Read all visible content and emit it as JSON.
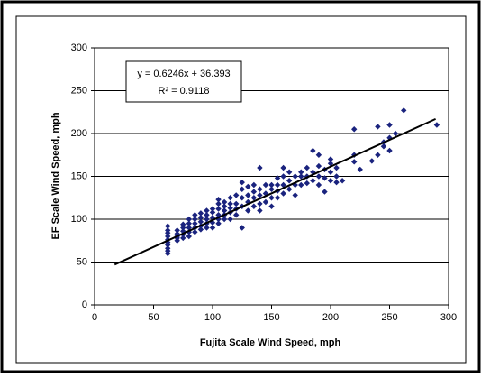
{
  "chart_data": {
    "type": "scatter",
    "x_label": "Fujita Scale Wind Speed, mph",
    "y_label": "EF Scale Wind Speed, mph",
    "annotation": [
      "y = 0.6246x + 36.393",
      "R² = 0.9118"
    ],
    "xlim": [
      0,
      300
    ],
    "xticks": [
      0,
      50,
      100,
      150,
      200,
      250,
      300
    ],
    "ylim": [
      0,
      300
    ],
    "yticks": [
      0,
      50,
      100,
      150,
      200,
      250,
      300
    ],
    "grid": true,
    "series": [
      {
        "color": "#1a237e",
        "x": [
          62,
          62,
          62,
          62,
          62,
          62,
          62,
          62,
          62,
          62,
          70,
          70,
          70,
          70,
          70,
          75,
          75,
          75,
          75,
          75,
          80,
          80,
          80,
          80,
          80,
          85,
          85,
          85,
          85,
          85,
          90,
          90,
          90,
          90,
          90,
          95,
          95,
          95,
          95,
          95,
          100,
          100,
          100,
          100,
          100,
          105,
          105,
          105,
          105,
          105,
          105,
          110,
          110,
          110,
          110,
          110,
          115,
          115,
          115,
          115,
          115,
          120,
          120,
          120,
          120,
          125,
          125,
          125,
          125,
          125,
          130,
          130,
          130,
          130,
          135,
          135,
          135,
          135,
          140,
          140,
          140,
          140,
          140,
          145,
          145,
          145,
          150,
          150,
          150,
          150,
          155,
          155,
          155,
          155,
          160,
          160,
          160,
          160,
          165,
          165,
          165,
          170,
          170,
          170,
          175,
          175,
          175,
          180,
          180,
          180,
          185,
          185,
          185,
          190,
          190,
          190,
          190,
          195,
          195,
          195,
          200,
          200,
          200,
          200,
          205,
          205,
          205,
          210,
          220,
          220,
          220,
          225,
          235,
          240,
          240,
          245,
          245,
          250,
          250,
          250,
          255,
          262,
          290
        ],
        "values": [
          60,
          63,
          66,
          70,
          73,
          76,
          80,
          84,
          87,
          92,
          75,
          78,
          80,
          83,
          87,
          78,
          82,
          86,
          90,
          94,
          80,
          85,
          90,
          95,
          100,
          85,
          90,
          95,
          100,
          105,
          88,
          92,
          97,
          102,
          107,
          90,
          95,
          100,
          105,
          110,
          90,
          96,
          102,
          108,
          112,
          95,
          100,
          105,
          112,
          118,
          123,
          100,
          105,
          110,
          115,
          120,
          100,
          108,
          113,
          118,
          125,
          105,
          112,
          118,
          128,
          90,
          115,
          125,
          135,
          143,
          110,
          120,
          128,
          138,
          115,
          125,
          132,
          140,
          110,
          118,
          128,
          135,
          160,
          120,
          130,
          140,
          115,
          125,
          135,
          140,
          125,
          133,
          140,
          148,
          130,
          140,
          150,
          160,
          135,
          145,
          155,
          128,
          140,
          150,
          140,
          150,
          155,
          142,
          150,
          160,
          145,
          155,
          180,
          140,
          150,
          162,
          175,
          132,
          148,
          158,
          145,
          155,
          165,
          170,
          143,
          150,
          160,
          145,
          167,
          175,
          205,
          158,
          168,
          175,
          208,
          185,
          190,
          180,
          195,
          210,
          200,
          227,
          210
        ]
      }
    ],
    "trendline": {
      "color": "#000000",
      "x": [
        17,
        289
      ],
      "values": [
        47,
        217
      ]
    }
  }
}
